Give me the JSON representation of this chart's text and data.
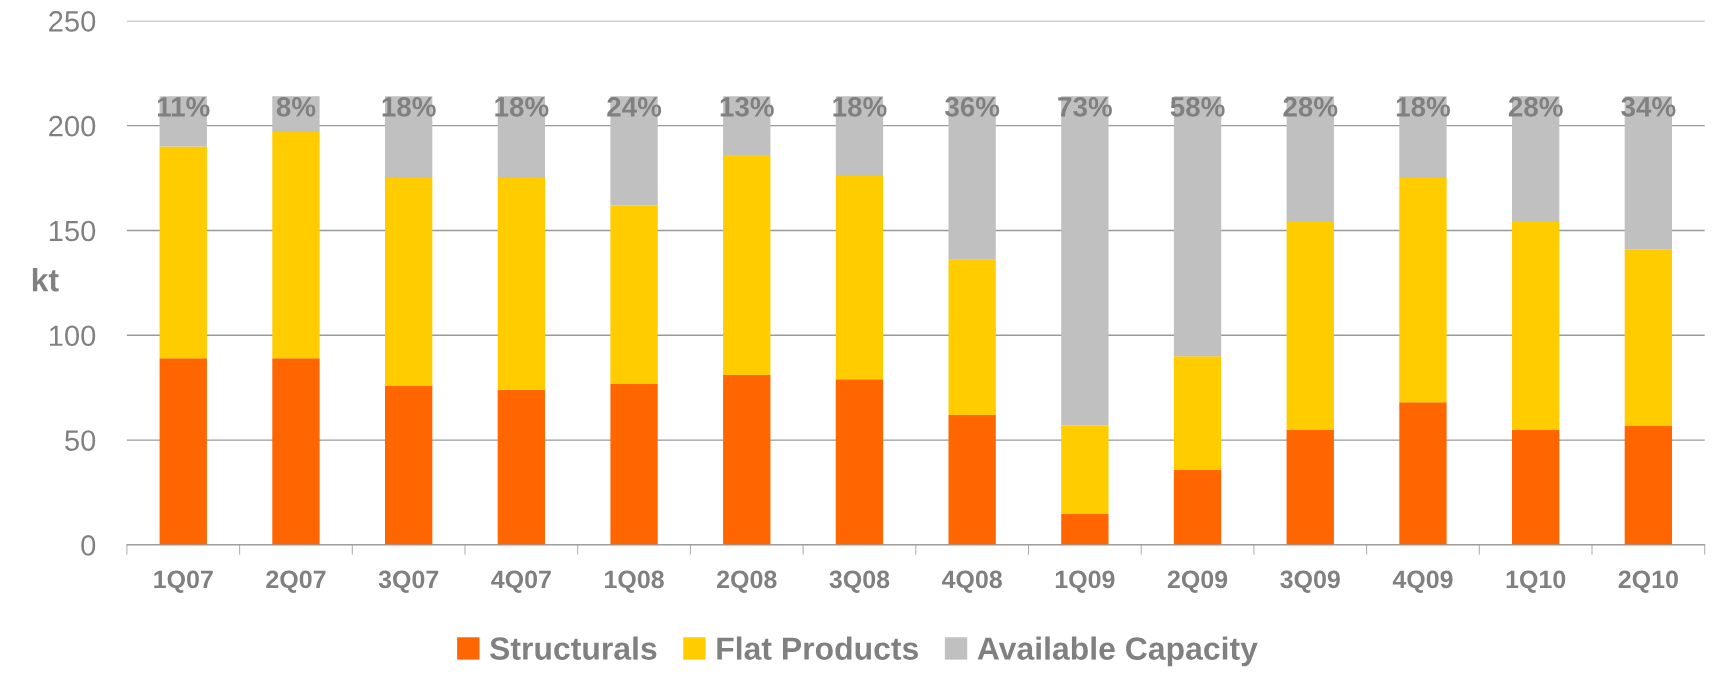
{
  "chart_data": {
    "type": "bar",
    "stacked": true,
    "ylabel": "kt",
    "categories": [
      "1Q07",
      "2Q07",
      "3Q07",
      "4Q07",
      "1Q08",
      "2Q08",
      "3Q08",
      "4Q08",
      "1Q09",
      "2Q09",
      "3Q09",
      "4Q09",
      "1Q10",
      "2Q10"
    ],
    "series": [
      {
        "name": "Structurals",
        "color": "#ff6600",
        "values": [
          89,
          89,
          76,
          74,
          77,
          81,
          79,
          62,
          15,
          36,
          55,
          68,
          55,
          57
        ]
      },
      {
        "name": "Flat Products",
        "color": "#ffcc00",
        "values": [
          101,
          108,
          99,
          101,
          85,
          105,
          97,
          74,
          42,
          54,
          99,
          107,
          99,
          84
        ]
      },
      {
        "name": "Available Capacity",
        "color": "#c0c0c0",
        "values": [
          24,
          17,
          39,
          39,
          52,
          28,
          38,
          78,
          157,
          124,
          60,
          39,
          60,
          73
        ]
      }
    ],
    "annotations": [
      {
        "text": "11%",
        "x": "1Q07",
        "y": 214
      },
      {
        "text": "8%",
        "x": "2Q07",
        "y": 214
      },
      {
        "text": "18%",
        "x": "3Q07",
        "y": 214
      },
      {
        "text": "18%",
        "x": "4Q07",
        "y": 214
      },
      {
        "text": "24%",
        "x": "1Q08",
        "y": 214
      },
      {
        "text": "13%",
        "x": "2Q08",
        "y": 214
      },
      {
        "text": "18%",
        "x": "3Q08",
        "y": 214
      },
      {
        "text": "36%",
        "x": "4Q08",
        "y": 214
      },
      {
        "text": "73%",
        "x": "1Q09",
        "y": 214
      },
      {
        "text": "58%",
        "x": "2Q09",
        "y": 214
      },
      {
        "text": "28%",
        "x": "3Q09",
        "y": 214
      },
      {
        "text": "18%",
        "x": "4Q09",
        "y": 214
      },
      {
        "text": "28%",
        "x": "1Q10",
        "y": 214
      },
      {
        "text": "34%",
        "x": "2Q10",
        "y": 214
      }
    ],
    "ylim": [
      0,
      250
    ],
    "yticks": [
      0,
      50,
      100,
      150,
      200,
      250
    ],
    "grid": "y",
    "legend": "bottom"
  }
}
